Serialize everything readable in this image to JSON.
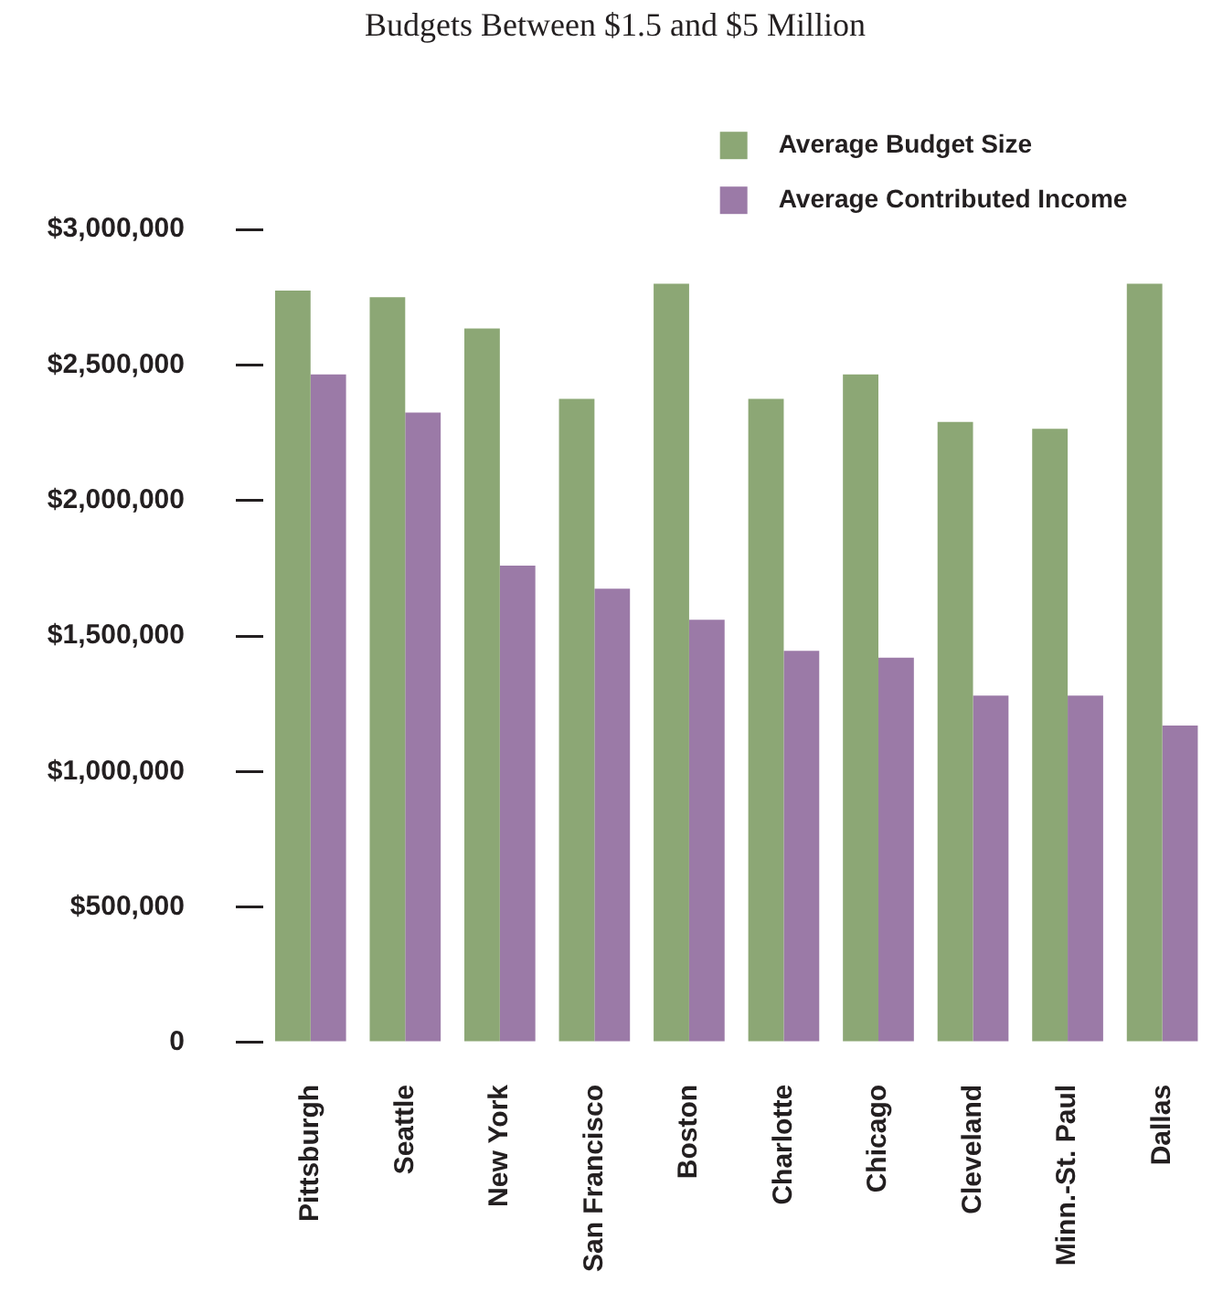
{
  "chart_data": {
    "type": "bar",
    "title": "Budgets Between $1.5 and $5 Million",
    "categories": [
      "Pittsburgh",
      "Seattle",
      "New York",
      "San Francisco",
      "Boston",
      "Charlotte",
      "Chicago",
      "Cleveland",
      "Minn.-St. Paul",
      "Dallas"
    ],
    "series": [
      {
        "name": "Average Budget Size",
        "color": "#8ca775",
        "values": [
          2775000,
          2750000,
          2635000,
          2375000,
          2800000,
          2375000,
          2465000,
          2290000,
          2265000,
          2800000
        ]
      },
      {
        "name": "Average Contributed Income",
        "color": "#9b7aa7",
        "values": [
          2465000,
          2325000,
          1760000,
          1675000,
          1560000,
          1445000,
          1420000,
          1280000,
          1280000,
          1170000
        ]
      }
    ],
    "ylim": [
      0,
      3000000
    ],
    "yticks": [
      0,
      {
        "value": 500000,
        "label": "$500,000"
      },
      {
        "value": 1000000,
        "label": "$1,000,000"
      },
      {
        "value": 1500000,
        "label": "$1,500,000"
      },
      {
        "value": 2000000,
        "label": "$2,000,000"
      },
      {
        "value": 2500000,
        "label": "$2,500,000"
      },
      {
        "value": 3000000,
        "label": "$3,000,000"
      }
    ],
    "legend": "top right"
  }
}
